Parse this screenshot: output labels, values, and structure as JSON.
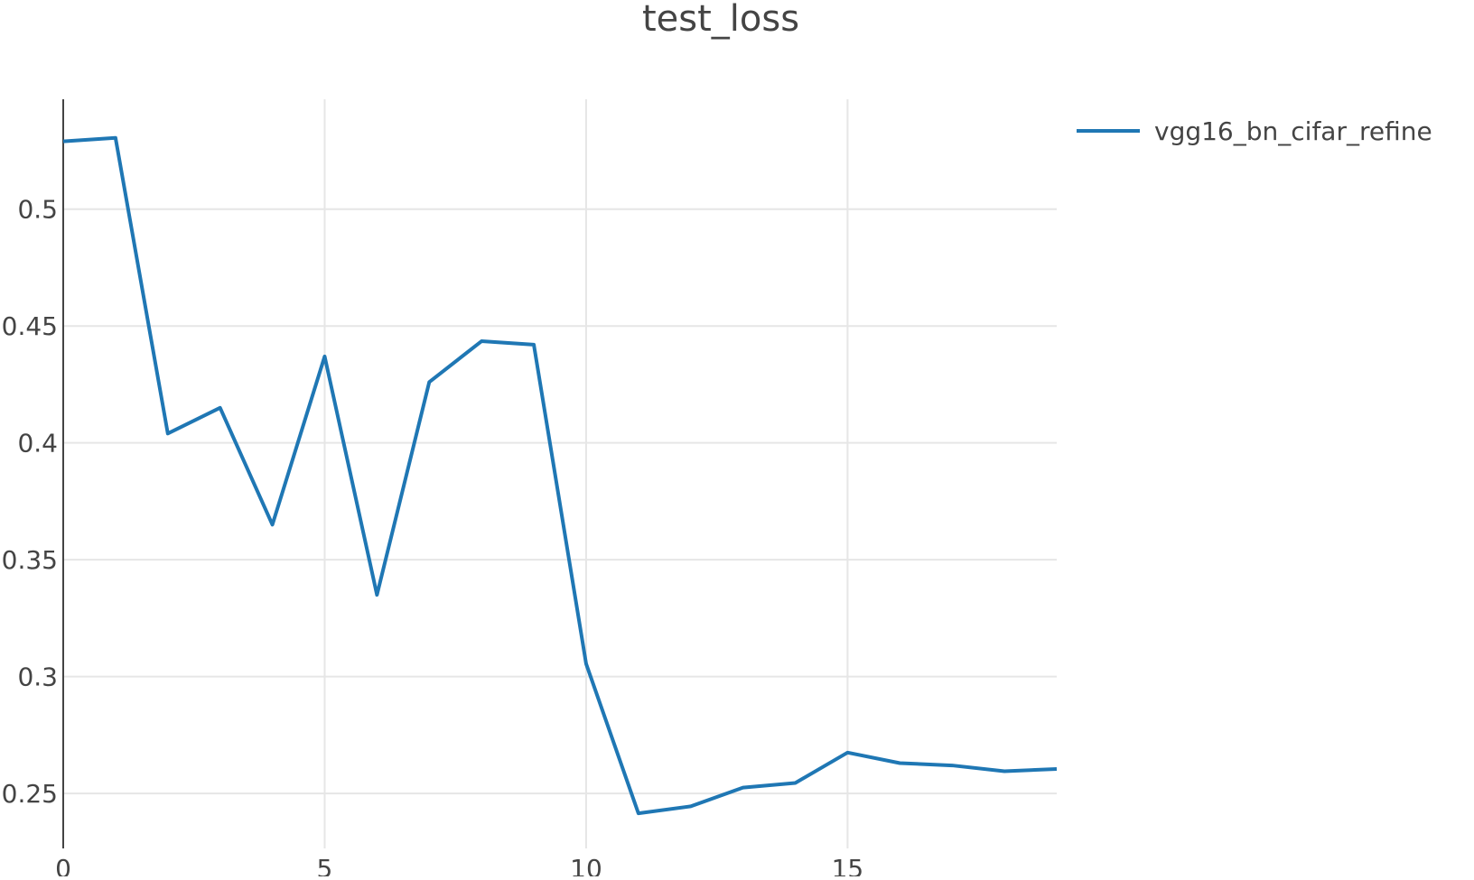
{
  "chart_data": {
    "type": "line",
    "title": "test_loss",
    "xlabel": "",
    "ylabel": "",
    "xlim": [
      0,
      19
    ],
    "ylim": [
      0.2265,
      0.547
    ],
    "x_ticks": [
      0,
      5,
      10,
      15
    ],
    "y_ticks": [
      0.25,
      0.3,
      0.35,
      0.4,
      0.45,
      0.5
    ],
    "grid": true,
    "legend_position": "top-right",
    "series": [
      {
        "name": "vgg16_bn_cifar_refine",
        "color": "#1f77b4",
        "x": [
          0,
          1,
          2,
          3,
          4,
          5,
          6,
          7,
          8,
          9,
          10,
          11,
          12,
          13,
          14,
          15,
          16,
          17,
          18,
          19
        ],
        "values": [
          0.529,
          0.5305,
          0.404,
          0.415,
          0.365,
          0.437,
          0.335,
          0.426,
          0.4435,
          0.442,
          0.3055,
          0.2415,
          0.2445,
          0.2525,
          0.2545,
          0.2675,
          0.263,
          0.262,
          0.2595,
          0.2605
        ]
      }
    ]
  }
}
